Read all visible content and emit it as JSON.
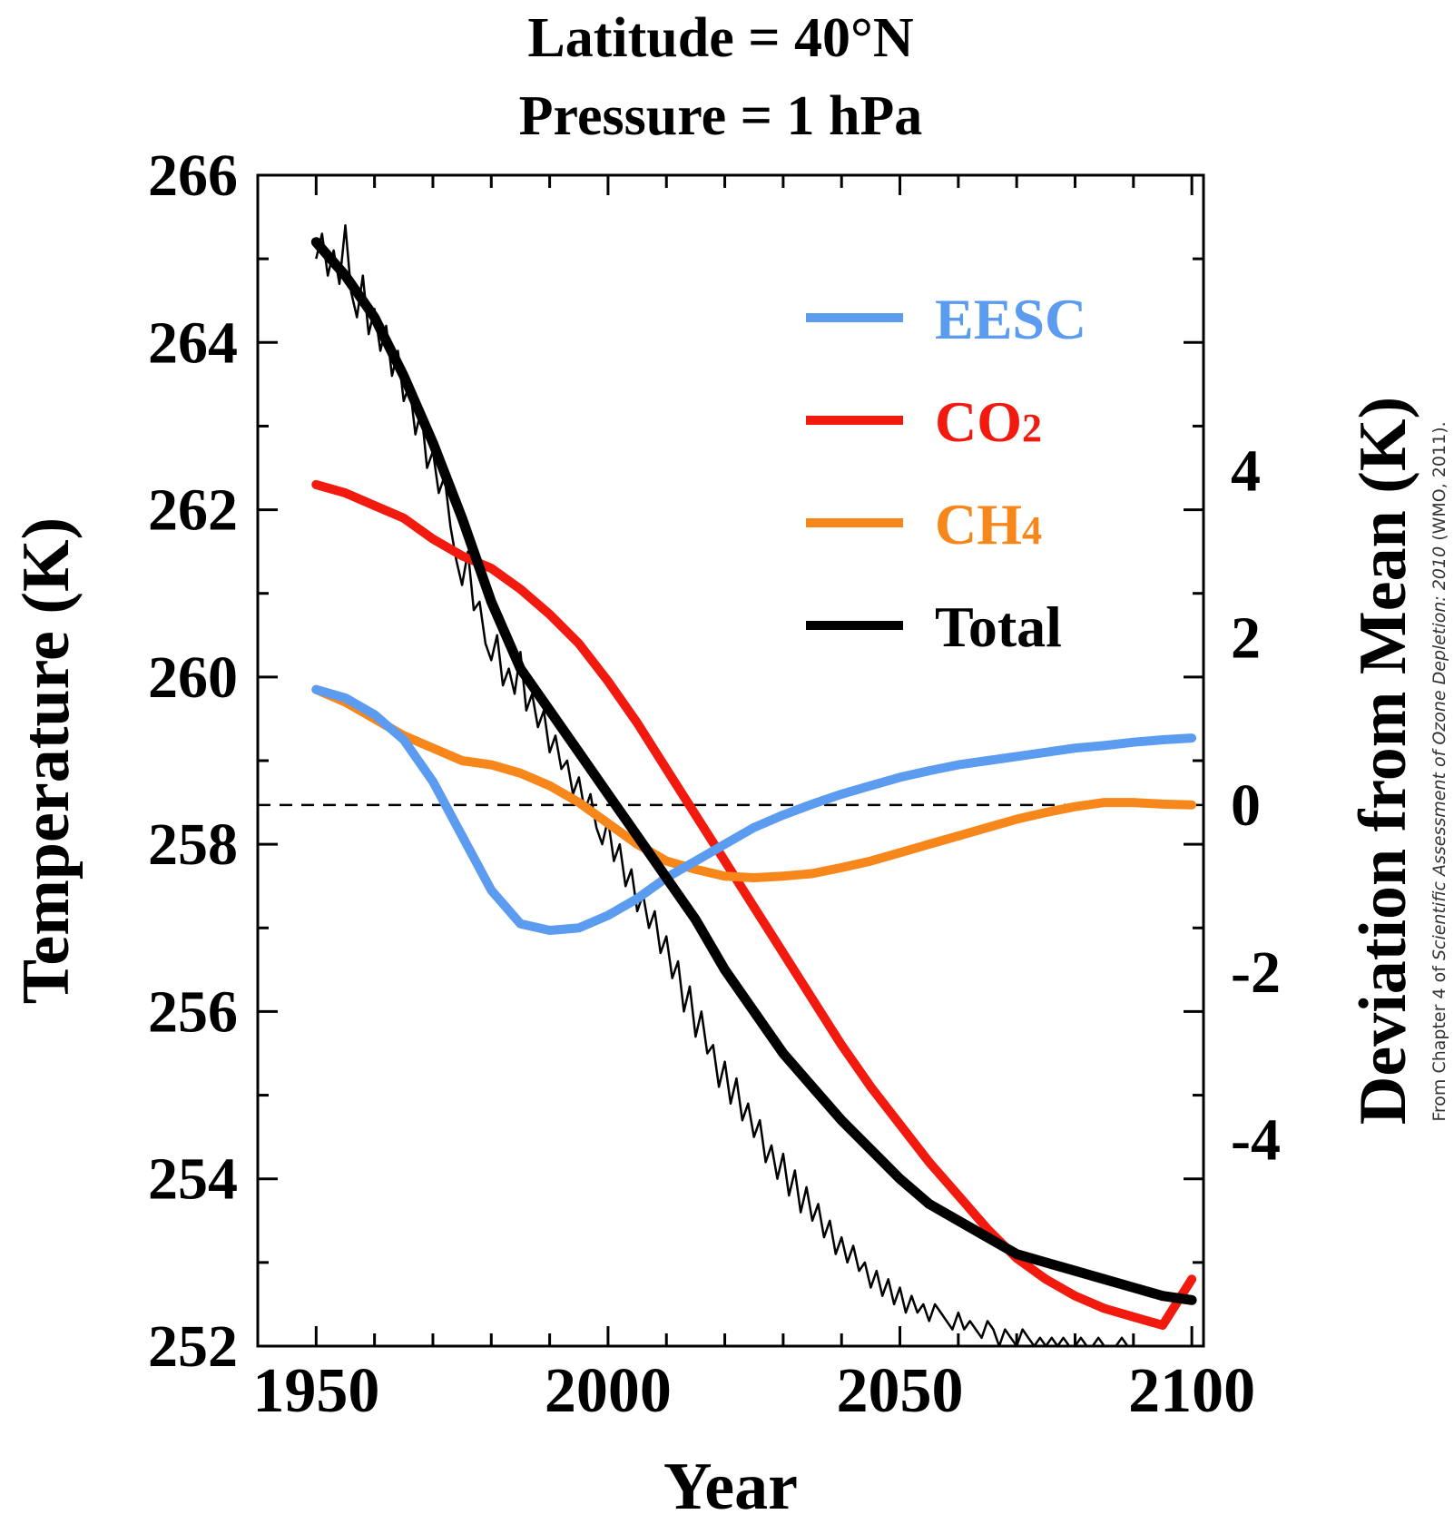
{
  "chart_data": {
    "type": "line",
    "title_lines": [
      "Latitude = 40°N",
      "Pressure = 1 hPa"
    ],
    "xlabel": "Year",
    "ylabel": "Temperature (K)",
    "ylabel_right": "Deviation from Mean (K)",
    "xlim": [
      1940,
      2102
    ],
    "ylim": [
      252,
      266
    ],
    "y2_ticks": [
      -4,
      -2,
      0,
      2,
      4
    ],
    "y2_zero_at": 258.47,
    "x_ticks": [
      1950,
      2000,
      2050,
      2100
    ],
    "x_tick_labels": [
      "1950",
      "2000",
      "2050",
      "2100"
    ],
    "y_ticks": [
      252,
      254,
      256,
      258,
      260,
      262,
      264,
      266
    ],
    "y_tick_labels": [
      "252",
      "254",
      "256",
      "258",
      "260",
      "262",
      "264",
      "266"
    ],
    "y2_tick_labels": [
      "-4",
      "-2",
      "0",
      "2",
      "4"
    ],
    "mean_line": 258.47,
    "legend_position": "top-right",
    "grid": false,
    "series": [
      {
        "name": "EESC",
        "legend_main": "EESC",
        "legend_sub": "",
        "color": "#5b9bf0",
        "x": [
          1950,
          1955,
          1960,
          1965,
          1970,
          1975,
          1980,
          1985,
          1990,
          1995,
          2000,
          2005,
          2010,
          2015,
          2020,
          2025,
          2030,
          2035,
          2040,
          2045,
          2050,
          2055,
          2060,
          2065,
          2070,
          2075,
          2080,
          2085,
          2090,
          2095,
          2100
        ],
        "values": [
          259.85,
          259.75,
          259.55,
          259.25,
          258.75,
          258.1,
          257.45,
          257.05,
          256.97,
          257.0,
          257.15,
          257.35,
          257.6,
          257.8,
          258.0,
          258.2,
          258.35,
          258.48,
          258.6,
          258.7,
          258.8,
          258.88,
          258.95,
          259.0,
          259.05,
          259.1,
          259.15,
          259.18,
          259.22,
          259.25,
          259.27
        ]
      },
      {
        "name": "CO2",
        "legend_main": "CO",
        "legend_sub": "2",
        "color": "#f21a0f",
        "x": [
          1950,
          1955,
          1960,
          1965,
          1970,
          1975,
          1980,
          1985,
          1990,
          1995,
          2000,
          2005,
          2010,
          2015,
          2020,
          2025,
          2030,
          2035,
          2040,
          2045,
          2050,
          2055,
          2060,
          2065,
          2070,
          2075,
          2080,
          2085,
          2090,
          2095,
          2100
        ],
        "values": [
          262.3,
          262.2,
          262.05,
          261.9,
          261.65,
          261.45,
          261.3,
          261.05,
          260.75,
          260.4,
          259.95,
          259.45,
          258.9,
          258.35,
          257.8,
          257.25,
          256.7,
          256.15,
          255.6,
          255.1,
          254.65,
          254.2,
          253.8,
          253.4,
          253.05,
          252.8,
          252.6,
          252.45,
          252.35,
          252.25,
          252.8
        ]
      },
      {
        "name": "CH4",
        "legend_main": "CH",
        "legend_sub": "4",
        "color": "#f7861b",
        "x": [
          1950,
          1955,
          1960,
          1965,
          1970,
          1975,
          1980,
          1985,
          1990,
          1995,
          2000,
          2005,
          2010,
          2015,
          2020,
          2025,
          2030,
          2035,
          2040,
          2045,
          2050,
          2055,
          2060,
          2065,
          2070,
          2075,
          2080,
          2085,
          2090,
          2095,
          2100
        ],
        "values": [
          259.85,
          259.7,
          259.5,
          259.3,
          259.15,
          259.0,
          258.95,
          258.85,
          258.7,
          258.5,
          258.25,
          258.0,
          257.8,
          257.7,
          257.62,
          257.6,
          257.62,
          257.65,
          257.72,
          257.8,
          257.9,
          258.0,
          258.1,
          258.2,
          258.3,
          258.38,
          258.45,
          258.5,
          258.5,
          258.48,
          258.47
        ]
      },
      {
        "name": "Total",
        "legend_main": "Total",
        "legend_sub": "",
        "color": "#000000",
        "x": [
          1950,
          1955,
          1960,
          1965,
          1970,
          1975,
          1980,
          1985,
          1990,
          1995,
          2000,
          2005,
          2010,
          2015,
          2020,
          2025,
          2030,
          2035,
          2040,
          2045,
          2050,
          2055,
          2060,
          2065,
          2070,
          2075,
          2080,
          2085,
          2090,
          2095,
          2100
        ],
        "values": [
          265.2,
          264.8,
          264.3,
          263.6,
          262.8,
          261.9,
          260.9,
          260.1,
          259.6,
          259.1,
          258.6,
          258.1,
          257.6,
          257.1,
          256.5,
          256.0,
          255.5,
          255.1,
          254.7,
          254.35,
          254.0,
          253.7,
          253.5,
          253.3,
          253.1,
          253.0,
          252.9,
          252.8,
          252.7,
          252.6,
          252.55
        ]
      }
    ],
    "total_annual": {
      "x_start": 1950,
      "x_step": 1,
      "values": [
        265.0,
        265.3,
        264.8,
        265.1,
        264.7,
        265.4,
        264.6,
        264.3,
        264.8,
        264.1,
        264.4,
        263.9,
        264.2,
        263.6,
        263.9,
        263.3,
        263.5,
        262.9,
        263.2,
        262.5,
        262.7,
        262.2,
        262.4,
        261.8,
        261.4,
        261.1,
        261.5,
        260.8,
        260.9,
        260.4,
        260.2,
        260.5,
        259.9,
        260.1,
        259.8,
        260.3,
        259.6,
        259.8,
        259.4,
        259.6,
        259.1,
        259.3,
        258.9,
        259.0,
        258.6,
        258.8,
        258.4,
        258.6,
        258.2,
        258.0,
        258.3,
        257.8,
        258.0,
        257.5,
        257.7,
        257.2,
        257.4,
        257.0,
        257.2,
        256.7,
        256.9,
        256.4,
        256.6,
        256.0,
        256.3,
        255.7,
        256.0,
        255.5,
        255.6,
        255.1,
        255.4,
        254.9,
        255.2,
        254.7,
        254.9,
        254.5,
        254.7,
        254.2,
        254.4,
        254.0,
        254.3,
        253.8,
        254.1,
        253.6,
        253.9,
        253.5,
        253.7,
        253.3,
        253.5,
        253.1,
        253.3,
        253.0,
        253.2,
        252.9,
        253.0,
        252.7,
        252.9,
        252.6,
        252.8,
        252.5,
        252.7,
        252.4,
        252.6,
        252.4,
        252.5,
        252.3,
        252.5,
        252.4,
        252.3,
        252.2,
        252.4,
        252.2,
        252.3,
        252.2,
        252.1,
        252.3,
        252.2,
        252.0,
        252.2,
        252.1,
        252.0,
        252.2,
        252.1,
        252.0,
        252.1,
        252.0,
        252.1,
        252.0,
        252.1,
        252.0,
        252.0,
        252.1,
        252.0,
        252.0,
        252.1,
        252.0,
        252.0,
        252.0,
        252.1,
        252.0,
        252.0,
        252.0,
        252.0,
        252.0,
        252.0,
        252.0,
        252.0,
        252.0,
        252.0
      ]
    }
  },
  "source_note": {
    "prefix": "From Chapter 4 of ",
    "italic": "Scientific Assessment of Ozone Depletion: 2010",
    "suffix": " (WMO, 2011)."
  }
}
